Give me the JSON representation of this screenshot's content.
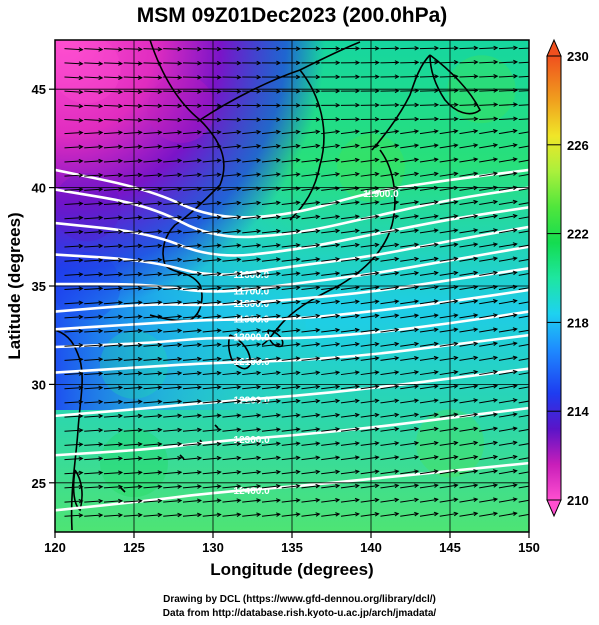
{
  "chart_data": {
    "type": "heatmap",
    "title": "MSM 09Z01Dec2023 (200.0hPa)",
    "xlabel": "Longitude (degrees)",
    "ylabel": "Latitude  (degrees)",
    "xlim": [
      120,
      150
    ],
    "ylim": [
      22.5,
      47.5
    ],
    "x_ticks": [
      120,
      125,
      130,
      135,
      140,
      145,
      150
    ],
    "x_tick_labels": [
      "120",
      "125",
      "130",
      "135",
      "140",
      "145",
      "150"
    ],
    "y_ticks": [
      25,
      30,
      35,
      40,
      45
    ],
    "y_tick_labels": [
      "25",
      "30",
      "35",
      "40",
      "45"
    ],
    "colorbar": {
      "min": 210,
      "max": 230,
      "ticks": [
        210,
        214,
        218,
        222,
        226,
        230
      ],
      "tick_labels": [
        "210",
        "214",
        "218",
        "222",
        "226",
        "230"
      ],
      "colors": [
        "#ff4fd0",
        "#c81eb9",
        "#5a14c8",
        "#1e3cf0",
        "#1e8cff",
        "#1ed2f0",
        "#1ee6a0",
        "#14dc50",
        "#50e63c",
        "#aaf03c",
        "#f0e628",
        "#f0a01e",
        "#f05a1e",
        "#ff4040"
      ]
    },
    "temperature_field": [
      {
        "lon": 122,
        "lat": 46,
        "value": 210
      },
      {
        "lon": 128,
        "lat": 44,
        "value": 212
      },
      {
        "lon": 122,
        "lat": 39,
        "value": 214
      },
      {
        "lon": 122,
        "lat": 35,
        "value": 215
      },
      {
        "lon": 125,
        "lat": 31,
        "value": 219
      },
      {
        "lon": 125,
        "lat": 26,
        "value": 221
      },
      {
        "lon": 140,
        "lat": 41,
        "value": 222
      },
      {
        "lon": 147,
        "lat": 45,
        "value": 222
      },
      {
        "lon": 138,
        "lat": 33,
        "value": 218
      },
      {
        "lon": 145,
        "lat": 27,
        "value": 222
      }
    ],
    "contours": [
      {
        "label": "11900.0",
        "points": [
          [
            120,
            40.9
          ],
          [
            126,
            39.9
          ],
          [
            130,
            38.4
          ],
          [
            135,
            38.6
          ],
          [
            140,
            39.8
          ],
          [
            145,
            40.4
          ],
          [
            150,
            40.9
          ]
        ]
      },
      {
        "label": "",
        "points": [
          [
            120,
            39.9
          ],
          [
            126,
            39.1
          ],
          [
            130,
            37.4
          ],
          [
            135,
            37.6
          ],
          [
            140,
            38.5
          ],
          [
            145,
            39.4
          ],
          [
            150,
            40.0
          ]
        ]
      },
      {
        "label": "",
        "points": [
          [
            120,
            38.2
          ],
          [
            126,
            37.7
          ],
          [
            130,
            36.4
          ],
          [
            135,
            36.8
          ],
          [
            140,
            37.6
          ],
          [
            145,
            38.4
          ],
          [
            150,
            39.0
          ]
        ]
      },
      {
        "label": "11600.0",
        "points": [
          [
            120,
            36.6
          ],
          [
            126,
            36.3
          ],
          [
            130,
            35.4
          ],
          [
            135,
            36.0
          ],
          [
            140,
            36.5
          ],
          [
            145,
            37.3
          ],
          [
            150,
            38.0
          ]
        ]
      },
      {
        "label": "11700.0",
        "points": [
          [
            120,
            35.1
          ],
          [
            126,
            35.1
          ],
          [
            130,
            34.6
          ],
          [
            135,
            35.1
          ],
          [
            140,
            35.6
          ],
          [
            145,
            36.3
          ],
          [
            150,
            37.0
          ]
        ]
      },
      {
        "label": "11800.0",
        "points": [
          [
            120,
            33.7
          ],
          [
            126,
            34.1
          ],
          [
            130,
            34.0
          ],
          [
            135,
            34.3
          ],
          [
            140,
            34.7
          ],
          [
            145,
            35.3
          ],
          [
            150,
            35.9
          ]
        ]
      },
      {
        "label": "11900.0",
        "points": [
          [
            120,
            32.8
          ],
          [
            126,
            33.1
          ],
          [
            130,
            33.3
          ],
          [
            135,
            33.3
          ],
          [
            140,
            33.7
          ],
          [
            145,
            34.2
          ],
          [
            150,
            34.8
          ]
        ]
      },
      {
        "label": "12000.0",
        "points": [
          [
            120,
            31.9
          ],
          [
            126,
            32.1
          ],
          [
            130,
            32.4
          ],
          [
            135,
            32.3
          ],
          [
            140,
            32.6
          ],
          [
            145,
            33.1
          ],
          [
            150,
            33.7
          ]
        ]
      },
      {
        "label": "12100.0",
        "points": [
          [
            120,
            30.6
          ],
          [
            126,
            30.9
          ],
          [
            130,
            31.1
          ],
          [
            135,
            31.2
          ],
          [
            140,
            31.5
          ],
          [
            145,
            32.0
          ],
          [
            150,
            32.5
          ]
        ]
      },
      {
        "label": "12200.0",
        "points": [
          [
            120,
            28.4
          ],
          [
            126,
            28.8
          ],
          [
            130,
            29.1
          ],
          [
            135,
            29.4
          ],
          [
            140,
            29.8
          ],
          [
            145,
            30.3
          ],
          [
            150,
            30.8
          ]
        ]
      },
      {
        "label": "12300.0",
        "points": [
          [
            120,
            26.4
          ],
          [
            126,
            26.7
          ],
          [
            130,
            27.1
          ],
          [
            135,
            27.4
          ],
          [
            140,
            27.8
          ],
          [
            145,
            28.3
          ],
          [
            150,
            28.8
          ]
        ]
      },
      {
        "label": "12400.0",
        "points": [
          [
            120,
            23.6
          ],
          [
            126,
            24.1
          ],
          [
            130,
            24.5
          ],
          [
            135,
            24.8
          ],
          [
            140,
            25.2
          ],
          [
            145,
            25.6
          ],
          [
            150,
            26.0
          ]
        ]
      }
    ],
    "grid": true,
    "wind_vectors": true
  },
  "credits": {
    "line1": "Drawing by DCL (https://www.gfd-dennou.org/library/dcl/)",
    "line2": "Data from http://database.rish.kyoto-u.ac.jp/arch/jmadata/"
  }
}
